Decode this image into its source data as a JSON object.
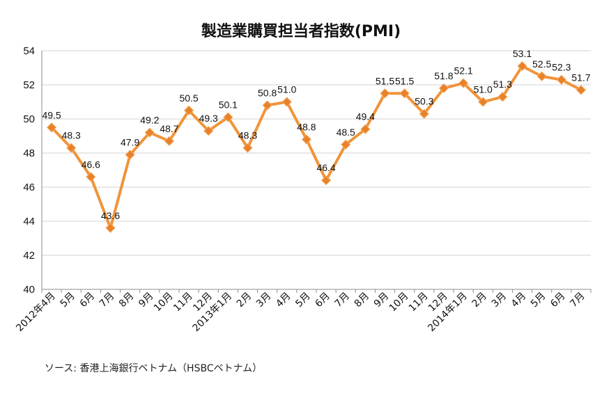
{
  "chart_data": {
    "type": "line",
    "title": "製造業購買担当者指数(PMI)",
    "xlabel": "",
    "ylabel": "",
    "ylim": [
      40,
      54
    ],
    "yticks": [
      40,
      42,
      44,
      46,
      48,
      50,
      52,
      54
    ],
    "grid": true,
    "legend": "none",
    "line_color": "#F0943A",
    "marker_color": "#E8822A",
    "categories": [
      "2012年4月",
      "5月",
      "6月",
      "7月",
      "8月",
      "9月",
      "10月",
      "11月",
      "12月",
      "2013年1月",
      "2月",
      "3月",
      "4月",
      "5月",
      "6月",
      "7月",
      "8月",
      "9月",
      "10月",
      "11月",
      "12月",
      "2014年1月",
      "2月",
      "3月",
      "4月",
      "5月",
      "6月",
      "7月"
    ],
    "series": [
      {
        "values": [
          49.5,
          48.3,
          46.6,
          43.6,
          47.9,
          49.2,
          48.7,
          50.5,
          49.3,
          50.1,
          48.3,
          50.8,
          51.0,
          48.8,
          46.4,
          48.5,
          49.4,
          51.5,
          51.5,
          50.3,
          51.8,
          52.1,
          51.0,
          51.3,
          53.1,
          52.5,
          52.3,
          51.7
        ],
        "labels": [
          "49.5",
          "48.3",
          "46.6",
          "43.6",
          "47.9",
          "49.2",
          "48.7",
          "50.5",
          "49.3",
          "50.1",
          "48.3",
          "50.8",
          "51.0",
          "48.8",
          "46.4",
          "48.5",
          "49.4",
          "51.5",
          "51.5",
          "50.3",
          "51.8",
          "52.1",
          "51.0",
          "51.3",
          "53.1",
          "52.5",
          "52.3",
          "51.7"
        ]
      }
    ]
  },
  "source": "ソース: 香港上海銀行ベトナム（HSBCベトナム）"
}
